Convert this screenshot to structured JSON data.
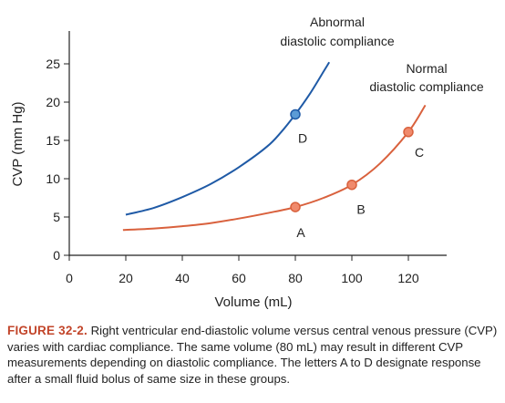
{
  "chart_data": {
    "type": "line",
    "xlabel": "Volume (mL)",
    "ylabel": "CVP (mm Hg)",
    "xlim": [
      0,
      126
    ],
    "ylim": [
      0,
      28
    ],
    "xticks": [
      0,
      20,
      40,
      60,
      80,
      100,
      120
    ],
    "yticks": [
      0,
      5,
      10,
      15,
      20,
      25
    ],
    "series": [
      {
        "name": "Abnormal diastolic compliance",
        "color": "#1f5aa6",
        "x": [
          20,
          30,
          40,
          50,
          60,
          70,
          75,
          80,
          85,
          90,
          92
        ],
        "y": [
          5.3,
          6.2,
          7.6,
          9.3,
          11.5,
          14.2,
          16.1,
          18.4,
          21.0,
          24.0,
          25.2
        ]
      },
      {
        "name": "Normal diastolic compliance",
        "color": "#d9613d",
        "x": [
          19,
          30,
          40,
          50,
          60,
          70,
          80,
          90,
          100,
          110,
          120,
          126
        ],
        "y": [
          3.3,
          3.5,
          3.8,
          4.2,
          4.8,
          5.5,
          6.3,
          7.5,
          9.2,
          12.0,
          16.1,
          19.6
        ]
      }
    ],
    "points": [
      {
        "label": "D",
        "x": 80,
        "y": 18.4,
        "series": 0
      },
      {
        "label": "A",
        "x": 80,
        "y": 6.3,
        "series": 1
      },
      {
        "label": "B",
        "x": 100,
        "y": 9.2,
        "series": 1
      },
      {
        "label": "C",
        "x": 120,
        "y": 16.1,
        "series": 1
      }
    ]
  },
  "caption": {
    "figure_label": "FIGURE 32-2.",
    "text": "Right ventricular end-diastolic volume versus central venous pressure (CVP) varies with cardiac compliance. The same volume (80 mL) may result in different CVP measurements depending on diastolic compliance. The letters A to D designate response after a small fluid bolus of same size in these groups."
  }
}
